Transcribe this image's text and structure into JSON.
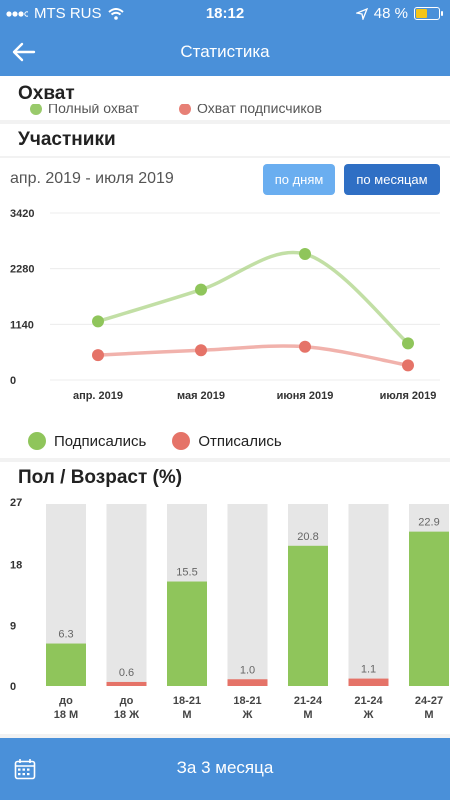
{
  "status_bar": {
    "carrier": "MTS RUS",
    "time": "18:12",
    "battery": "48 %",
    "battery_level": 0.48
  },
  "header": {
    "title": "Статистика"
  },
  "reach": {
    "title": "Охват",
    "legend": [
      {
        "name": "Полный охват",
        "color": "#8fc55b"
      },
      {
        "name": "Охват подписчиков",
        "color": "#e57368"
      }
    ]
  },
  "participants": {
    "title": "Участники",
    "date_range": "апр. 2019 - июля 2019",
    "btn_days": "по дням",
    "btn_months": "по месяцам",
    "legend": [
      {
        "name": "Подписались",
        "color": "#8fc55b"
      },
      {
        "name": "Отписались",
        "color": "#e57368"
      }
    ]
  },
  "gender_age": {
    "title": "Пол / Возраст (%)"
  },
  "footer": {
    "period": "За 3 месяца"
  },
  "chart_data": [
    {
      "type": "line",
      "categories": [
        "апр. 2019",
        "мая 2019",
        "июня 2019",
        "июля 2019"
      ],
      "yticks": [
        "3420",
        "2280",
        "1140",
        "0"
      ],
      "ylim": [
        0,
        3420
      ],
      "series": [
        {
          "name": "Подписались",
          "color": "#8fc55b",
          "values": [
            1200,
            1850,
            2580,
            750
          ]
        },
        {
          "name": "Отписались",
          "color": "#e57368",
          "values": [
            510,
            610,
            680,
            300
          ]
        }
      ]
    },
    {
      "type": "bar",
      "categories": [
        "до 18 М",
        "до 18 Ж",
        "18-21 М",
        "18-21 Ж",
        "21-24 М",
        "21-24 Ж",
        "24-27 М"
      ],
      "cat_lines": [
        [
          "до",
          "18 М"
        ],
        [
          "до",
          "18 Ж"
        ],
        [
          "18-21",
          "М"
        ],
        [
          "18-21",
          "Ж"
        ],
        [
          "21-24",
          "М"
        ],
        [
          "21-24",
          "Ж"
        ],
        [
          "24-27",
          "М"
        ]
      ],
      "values": [
        6.3,
        0.6,
        15.5,
        1.0,
        20.8,
        1.1,
        22.9
      ],
      "labels": [
        "6.3",
        "0.6",
        "15.5",
        "1.0",
        "20.8",
        "1.1",
        "22.9"
      ],
      "colors": [
        "#8fc55b",
        "#e57368",
        "#8fc55b",
        "#e57368",
        "#8fc55b",
        "#e57368",
        "#8fc55b"
      ],
      "yticks": [
        "27",
        "18",
        "9",
        "0"
      ],
      "ylim": [
        0,
        27
      ]
    }
  ]
}
